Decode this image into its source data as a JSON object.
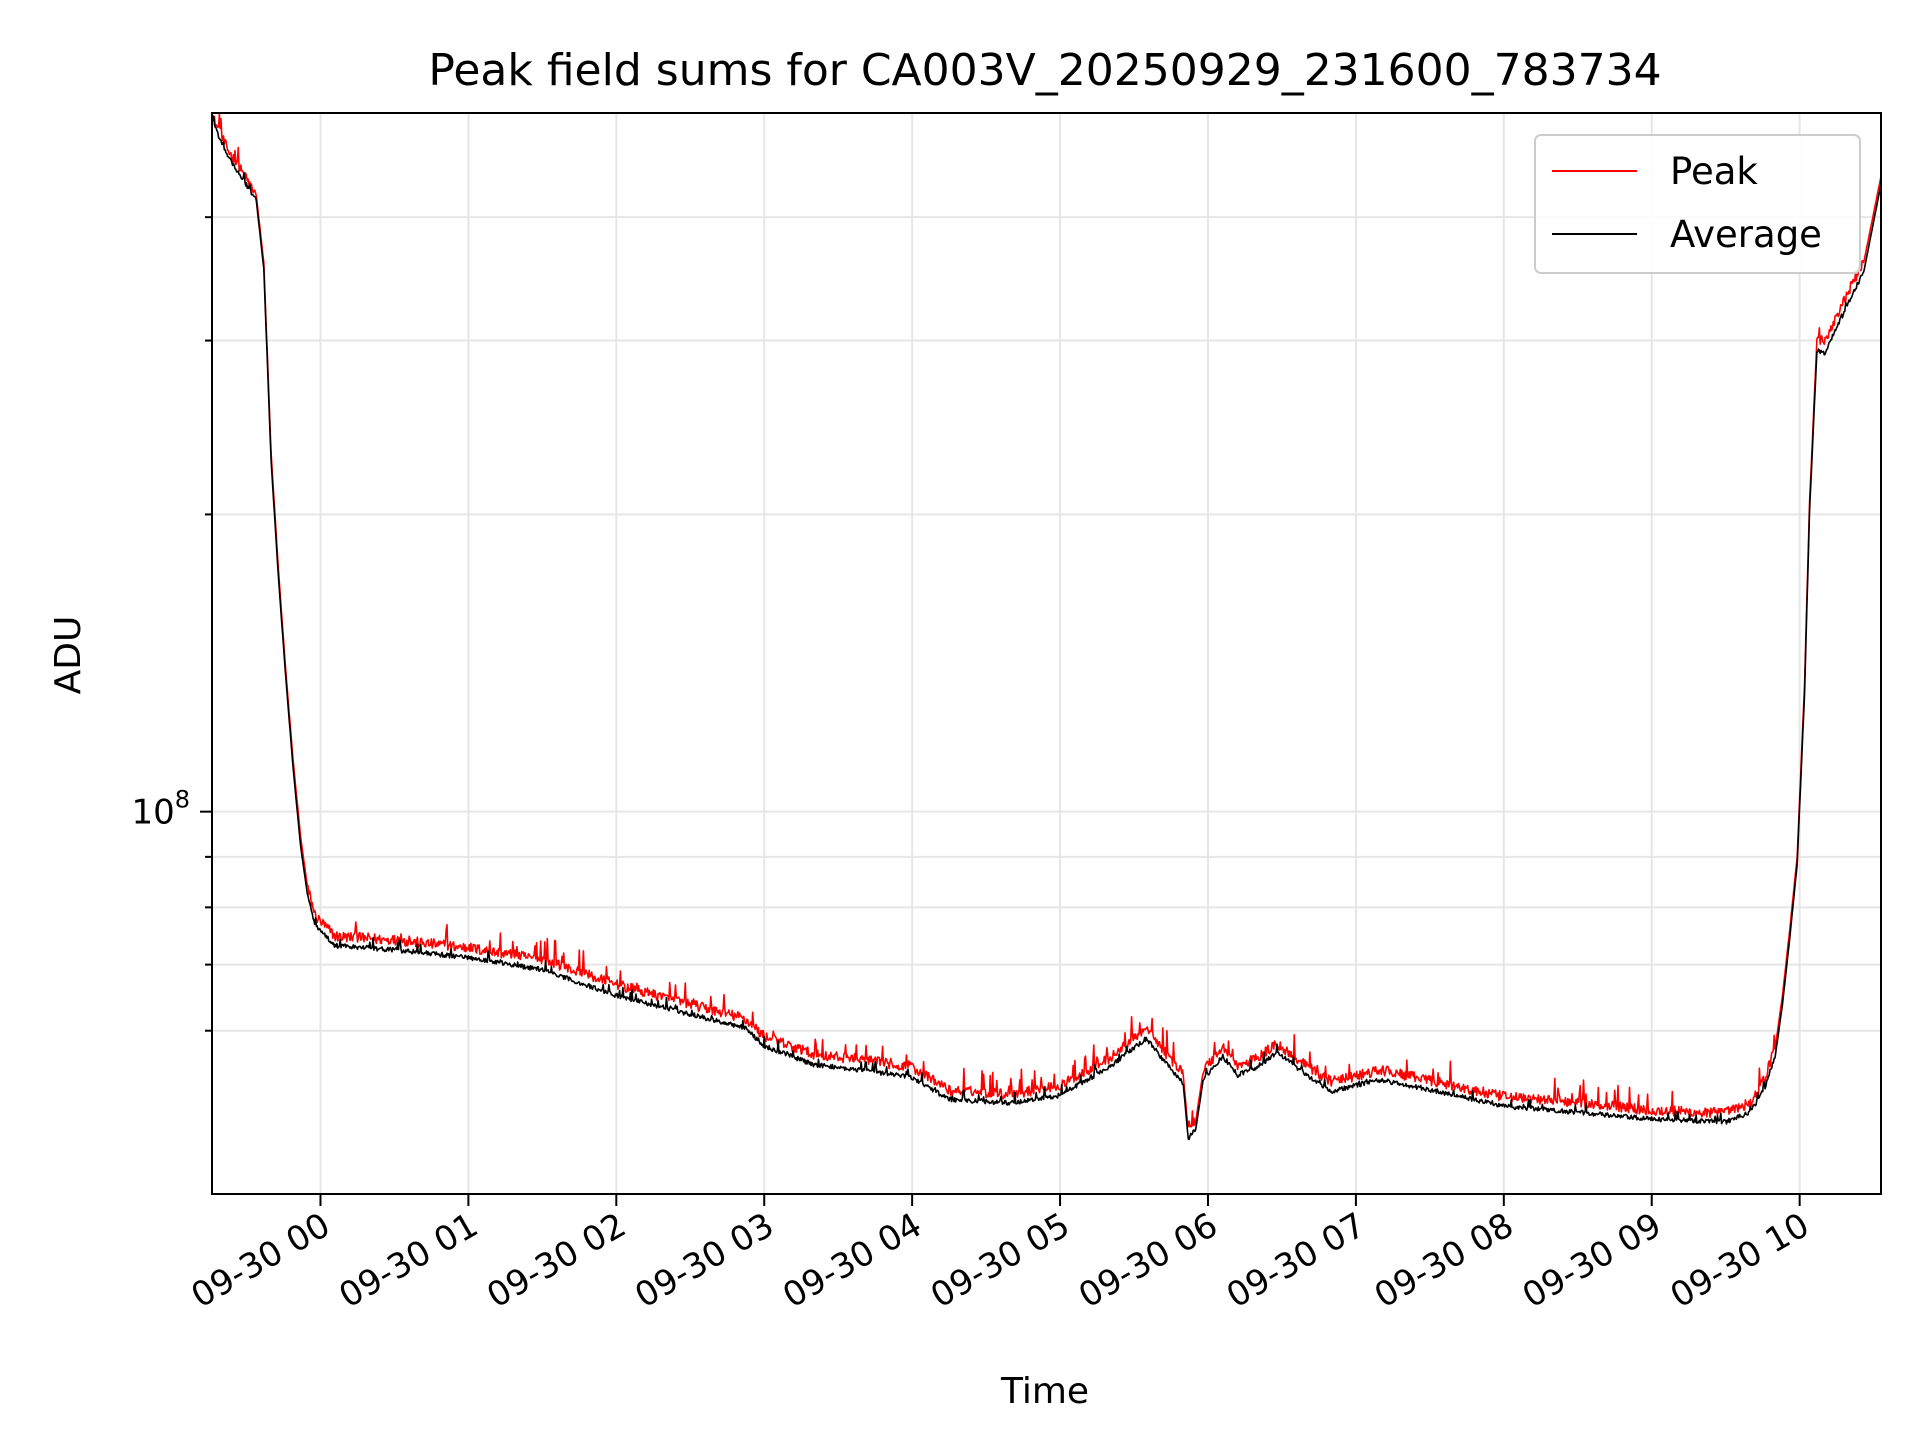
{
  "chart_data": {
    "type": "line",
    "title": "Peak field sums for CA003V_20250929_231600_783734",
    "xlabel": "Time",
    "ylabel": "ADU",
    "yscale": "log",
    "grid": true,
    "legend_position": "top-right",
    "x_range": [
      "2025-09-29 23:16",
      "2025-09-30 10:33"
    ],
    "y_range": [
      41000000,
      510000000
    ],
    "x_ticks": [
      {
        "value": "2025-09-30 00:00",
        "label": "09-30 00"
      },
      {
        "value": "2025-09-30 01:00",
        "label": "09-30 01"
      },
      {
        "value": "2025-09-30 02:00",
        "label": "09-30 02"
      },
      {
        "value": "2025-09-30 03:00",
        "label": "09-30 03"
      },
      {
        "value": "2025-09-30 04:00",
        "label": "09-30 04"
      },
      {
        "value": "2025-09-30 05:00",
        "label": "09-30 05"
      },
      {
        "value": "2025-09-30 06:00",
        "label": "09-30 06"
      },
      {
        "value": "2025-09-30 07:00",
        "label": "09-30 07"
      },
      {
        "value": "2025-09-30 08:00",
        "label": "09-30 08"
      },
      {
        "value": "2025-09-30 09:00",
        "label": "09-30 09"
      },
      {
        "value": "2025-09-30 10:00",
        "label": "09-30 10"
      }
    ],
    "y_major_ticks": [
      {
        "value": 100000000,
        "base": "10",
        "exponent": "8"
      }
    ],
    "y_minor_ticks": [
      60000000,
      70000000,
      80000000,
      90000000,
      200000000,
      300000000,
      400000000
    ],
    "series": [
      {
        "name": "Peak",
        "color": "#ff0000",
        "noise": 0.026,
        "points": [
          [
            "2025-09-29 23:16",
            505000000
          ],
          [
            "2025-09-29 23:22",
            468000000
          ],
          [
            "2025-09-29 23:34",
            420000000
          ],
          [
            "2025-09-29 23:37",
            360000000
          ],
          [
            "2025-09-29 23:40",
            230000000
          ],
          [
            "2025-09-29 23:43",
            175000000
          ],
          [
            "2025-09-29 23:46",
            138000000
          ],
          [
            "2025-09-29 23:49",
            112000000
          ],
          [
            "2025-09-29 23:52",
            94000000
          ],
          [
            "2025-09-29 23:55",
            83000000
          ],
          [
            "2025-09-29 23:58",
            78000000
          ],
          [
            "2025-09-30 00:06",
            74500000
          ],
          [
            "2025-09-30 00:30",
            73800000
          ],
          [
            "2025-09-30 01:00",
            72500000
          ],
          [
            "2025-09-30 01:30",
            70500000
          ],
          [
            "2025-09-30 02:00",
            66500000
          ],
          [
            "2025-09-30 02:30",
            63500000
          ],
          [
            "2025-09-30 02:52",
            61500000
          ],
          [
            "2025-09-30 03:00",
            59000000
          ],
          [
            "2025-09-30 03:20",
            56500000
          ],
          [
            "2025-09-30 03:40",
            55800000
          ],
          [
            "2025-09-30 04:00",
            54800000
          ],
          [
            "2025-09-30 04:15",
            52000000
          ],
          [
            "2025-09-30 04:40",
            51500000
          ],
          [
            "2025-09-30 05:00",
            52500000
          ],
          [
            "2025-09-30 05:20",
            56000000
          ],
          [
            "2025-09-30 05:35",
            60000000
          ],
          [
            "2025-09-30 05:42",
            57000000
          ],
          [
            "2025-09-30 05:50",
            54000000
          ],
          [
            "2025-09-30 05:52",
            47500000
          ],
          [
            "2025-09-30 05:55",
            48500000
          ],
          [
            "2025-09-30 05:58",
            54500000
          ],
          [
            "2025-09-30 06:06",
            57500000
          ],
          [
            "2025-09-30 06:12",
            55000000
          ],
          [
            "2025-09-30 06:20",
            56000000
          ],
          [
            "2025-09-30 06:28",
            58000000
          ],
          [
            "2025-09-30 06:40",
            55000000
          ],
          [
            "2025-09-30 06:50",
            53000000
          ],
          [
            "2025-09-30 07:10",
            54500000
          ],
          [
            "2025-09-30 07:40",
            52500000
          ],
          [
            "2025-09-30 08:00",
            51200000
          ],
          [
            "2025-09-30 08:30",
            50500000
          ],
          [
            "2025-09-30 09:00",
            49600000
          ],
          [
            "2025-09-30 09:30",
            49300000
          ],
          [
            "2025-09-30 09:40",
            50500000
          ],
          [
            "2025-09-30 09:46",
            53500000
          ],
          [
            "2025-09-30 09:50",
            57500000
          ],
          [
            "2025-09-30 09:53",
            65000000
          ],
          [
            "2025-09-30 09:56",
            76000000
          ],
          [
            "2025-09-30 09:59",
            90000000
          ],
          [
            "2025-09-30 10:02",
            135000000
          ],
          [
            "2025-09-30 10:04",
            205000000
          ],
          [
            "2025-09-30 10:07",
            300000000
          ],
          [
            "2025-09-30 10:10",
            298000000
          ],
          [
            "2025-09-30 10:16",
            320000000
          ],
          [
            "2025-09-30 10:26",
            360000000
          ],
          [
            "2025-09-30 10:33",
            440000000
          ]
        ]
      },
      {
        "name": "Average",
        "color": "#000000",
        "noise": 0.012,
        "points": [
          [
            "2025-09-29 23:16",
            500000000
          ],
          [
            "2025-09-29 23:22",
            462000000
          ],
          [
            "2025-09-29 23:34",
            415000000
          ],
          [
            "2025-09-29 23:37",
            355000000
          ],
          [
            "2025-09-29 23:40",
            226000000
          ],
          [
            "2025-09-29 23:43",
            172000000
          ],
          [
            "2025-09-29 23:46",
            136000000
          ],
          [
            "2025-09-29 23:49",
            110000000
          ],
          [
            "2025-09-29 23:52",
            92000000
          ],
          [
            "2025-09-29 23:55",
            81500000
          ],
          [
            "2025-09-29 23:58",
            76500000
          ],
          [
            "2025-09-30 00:06",
            73000000
          ],
          [
            "2025-09-30 00:30",
            72300000
          ],
          [
            "2025-09-30 01:00",
            71000000
          ],
          [
            "2025-09-30 01:30",
            69000000
          ],
          [
            "2025-09-30 02:00",
            65000000
          ],
          [
            "2025-09-30 02:30",
            62200000
          ],
          [
            "2025-09-30 02:52",
            60300000
          ],
          [
            "2025-09-30 03:00",
            57800000
          ],
          [
            "2025-09-30 03:20",
            55300000
          ],
          [
            "2025-09-30 03:40",
            54600000
          ],
          [
            "2025-09-30 04:00",
            53700000
          ],
          [
            "2025-09-30 04:15",
            51000000
          ],
          [
            "2025-09-30 04:40",
            50600000
          ],
          [
            "2025-09-30 05:00",
            51500000
          ],
          [
            "2025-09-30 05:20",
            55000000
          ],
          [
            "2025-09-30 05:35",
            58800000
          ],
          [
            "2025-09-30 05:42",
            55900000
          ],
          [
            "2025-09-30 05:50",
            52900000
          ],
          [
            "2025-09-30 05:52",
            46600000
          ],
          [
            "2025-09-30 05:55",
            47600000
          ],
          [
            "2025-09-30 05:58",
            53400000
          ],
          [
            "2025-09-30 06:06",
            56400000
          ],
          [
            "2025-09-30 06:12",
            54000000
          ],
          [
            "2025-09-30 06:20",
            55000000
          ],
          [
            "2025-09-30 06:28",
            56900000
          ],
          [
            "2025-09-30 06:40",
            54000000
          ],
          [
            "2025-09-30 06:50",
            52000000
          ],
          [
            "2025-09-30 07:10",
            53400000
          ],
          [
            "2025-09-30 07:40",
            51500000
          ],
          [
            "2025-09-30 08:00",
            50200000
          ],
          [
            "2025-09-30 08:30",
            49500000
          ],
          [
            "2025-09-30 09:00",
            48700000
          ],
          [
            "2025-09-30 09:30",
            48400000
          ],
          [
            "2025-09-30 09:40",
            49500000
          ],
          [
            "2025-09-30 09:46",
            52400000
          ],
          [
            "2025-09-30 09:50",
            56300000
          ],
          [
            "2025-09-30 09:53",
            63700000
          ],
          [
            "2025-09-30 09:56",
            74500000
          ],
          [
            "2025-09-30 09:59",
            88500000
          ],
          [
            "2025-09-30 10:02",
            132000000
          ],
          [
            "2025-09-30 10:04",
            201000000
          ],
          [
            "2025-09-30 10:07",
            293000000
          ],
          [
            "2025-09-30 10:10",
            290000000
          ],
          [
            "2025-09-30 10:16",
            312000000
          ],
          [
            "2025-09-30 10:26",
            352000000
          ],
          [
            "2025-09-30 10:33",
            432000000
          ]
        ]
      }
    ]
  }
}
